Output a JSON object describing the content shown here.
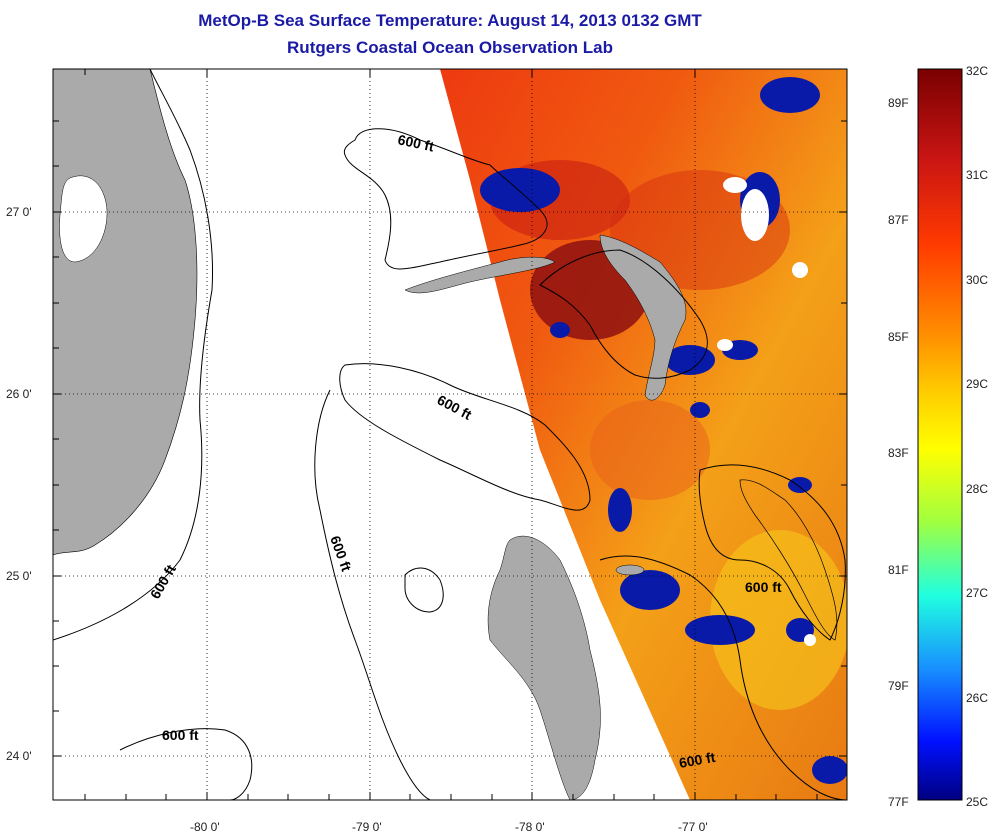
{
  "header": {
    "title": "MetOp-B Sea Surface Temperature:  August 14, 2013 0132 GMT",
    "subtitle": "Rutgers Coastal Ocean Observation Lab"
  },
  "map": {
    "lon_labels": [
      "-80 0'",
      "-79 0'",
      "-78 0'",
      "-77 0'"
    ],
    "lat_labels": [
      "27 0'",
      "26 0'",
      "25 0'",
      "24 0'"
    ],
    "contour_labels": [
      "600 ft",
      "600 ft",
      "600 ft",
      "600 ft",
      "600 ft",
      "600 ft",
      "600 ft"
    ]
  },
  "colorbar": {
    "celsius_labels": [
      "32C",
      "31C",
      "30C",
      "29C",
      "28C",
      "27C",
      "26C",
      "25C"
    ],
    "fahrenheit_labels": [
      "89F",
      "87F",
      "85F",
      "83F",
      "81F",
      "79F",
      "77F"
    ]
  },
  "colors": {
    "title": "#1a1aa6",
    "land": "#aaaaaa",
    "ocean_no_data": "#ffffff"
  }
}
